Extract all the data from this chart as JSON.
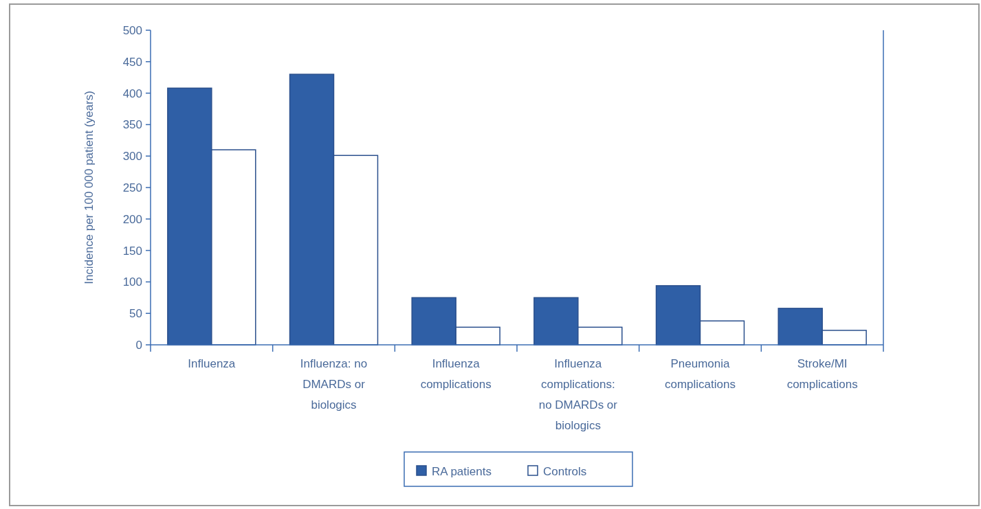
{
  "chart_data": {
    "type": "bar",
    "ylabel": "Incidence per 100 000 patient (years)",
    "categories": [
      "Influenza",
      "Influenza: no DMARDs or biologics",
      "Influenza complications",
      "Influenza complications: no DMARDs or biologics",
      "Pneumonia complications",
      "Stroke/MI complications"
    ],
    "series": [
      {
        "name": "RA patients",
        "color": "#2f5fa6",
        "values": [
          408,
          430,
          75,
          75,
          94,
          58
        ]
      },
      {
        "name": "Controls",
        "color": "#ffffff",
        "values": [
          310,
          301,
          28,
          28,
          38,
          23
        ]
      }
    ],
    "ylim": [
      0,
      500
    ],
    "yticks": [
      0,
      50,
      100,
      150,
      200,
      250,
      300,
      350,
      400,
      450,
      500
    ],
    "grid": false,
    "legend": "bottom"
  }
}
